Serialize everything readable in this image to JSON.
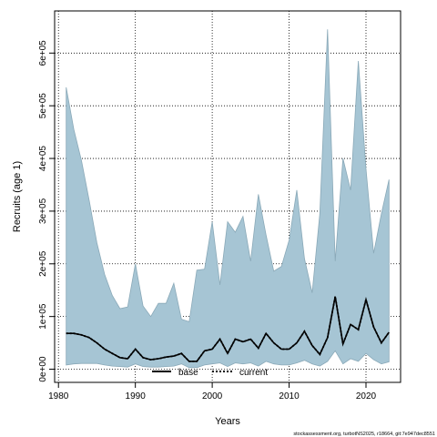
{
  "chart_data": {
    "type": "area",
    "xlabel": "Years",
    "ylabel": "Recruits (age 1)",
    "xlim": [
      1979.5,
      2024.5
    ],
    "ylim": [
      -25000,
      680000
    ],
    "x_ticks": [
      1980,
      1990,
      2000,
      2010,
      2020
    ],
    "x_tick_labels": [
      "1980",
      "1990",
      "2000",
      "2010",
      "2020"
    ],
    "y_ticks": [
      0,
      100000,
      200000,
      300000,
      400000,
      500000,
      600000
    ],
    "y_tick_labels": [
      "0e+00",
      "1e+05",
      "2e+05",
      "3e+05",
      "4e+05",
      "5e+05",
      "6e+05"
    ],
    "grid": true,
    "legend_position": "bottom",
    "footnote": "stockassessment.org, turbotNS2025, r18664, git:7e947dec8551",
    "colors": {
      "band_fill": "#a6c5d4",
      "band_stroke": "#8aa9b8",
      "base_line": "#000000",
      "current_line": "#000000"
    },
    "x": [
      1981,
      1982,
      1983,
      1984,
      1985,
      1986,
      1987,
      1988,
      1989,
      1990,
      1991,
      1992,
      1993,
      1994,
      1995,
      1996,
      1997,
      1998,
      1999,
      2000,
      2001,
      2002,
      2003,
      2004,
      2005,
      2006,
      2007,
      2008,
      2009,
      2010,
      2011,
      2012,
      2013,
      2014,
      2015,
      2016,
      2017,
      2018,
      2019,
      2020,
      2021,
      2022,
      2023
    ],
    "series": [
      {
        "name": "base",
        "style": "solid",
        "values": [
          68000,
          68000,
          65000,
          60000,
          50000,
          38000,
          30000,
          22000,
          20000,
          38000,
          22000,
          18000,
          20000,
          23000,
          25000,
          30000,
          15000,
          15000,
          35000,
          38000,
          57000,
          30000,
          57000,
          52000,
          57000,
          40000,
          68000,
          50000,
          38000,
          38000,
          50000,
          72000,
          45000,
          28000,
          60000,
          138000,
          48000,
          85000,
          75000,
          132000,
          80000,
          50000,
          70000
        ]
      },
      {
        "name": "current",
        "style": "dotted",
        "values": [
          68000,
          68000,
          65000,
          60000,
          50000,
          38000,
          30000,
          22000,
          20000,
          38000,
          22000,
          18000,
          20000,
          23000,
          25000,
          30000,
          15000,
          15000,
          35000,
          38000,
          57000,
          30000,
          57000,
          52000,
          57000,
          40000,
          68000,
          50000,
          38000,
          38000,
          50000,
          72000,
          45000,
          28000,
          60000,
          138000,
          48000,
          85000,
          75000,
          132000,
          80000,
          50000,
          70000
        ]
      }
    ],
    "band": {
      "upper": [
        535000,
        455000,
        395000,
        320000,
        240000,
        180000,
        140000,
        115000,
        118000,
        200000,
        120000,
        100000,
        125000,
        125000,
        163000,
        95000,
        90000,
        188000,
        190000,
        280000,
        160000,
        280000,
        260000,
        290000,
        205000,
        332000,
        255000,
        186000,
        195000,
        245000,
        340000,
        210000,
        145000,
        295000,
        645000,
        205000,
        400000,
        340000,
        585000,
        380000,
        220000,
        295000,
        360000
      ],
      "lower": [
        8000,
        10000,
        11000,
        11000,
        11000,
        8000,
        6000,
        5000,
        4000,
        10000,
        5000,
        4000,
        4000,
        5000,
        6000,
        10000,
        3000,
        3000,
        8000,
        10000,
        12000,
        5000,
        12000,
        10000,
        12000,
        6000,
        15000,
        10000,
        8000,
        8000,
        12000,
        17000,
        10000,
        6000,
        15000,
        35000,
        10000,
        20000,
        15000,
        30000,
        18000,
        10000,
        14000
      ]
    }
  }
}
